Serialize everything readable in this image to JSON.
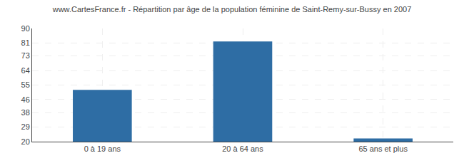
{
  "chart_data": {
    "type": "bar",
    "title": "www.CartesFrance.fr - Répartition par âge de la population féminine de Saint-Remy-sur-Bussy en 2007",
    "categories": [
      "0 à 19 ans",
      "20 à 64 ans",
      "65 ans et plus"
    ],
    "values": [
      52,
      82,
      22
    ],
    "color": "#2e6da4",
    "ylim": [
      20,
      90
    ],
    "yticks": [
      20,
      29,
      38,
      46,
      55,
      64,
      73,
      81,
      90
    ],
    "grid": true
  }
}
